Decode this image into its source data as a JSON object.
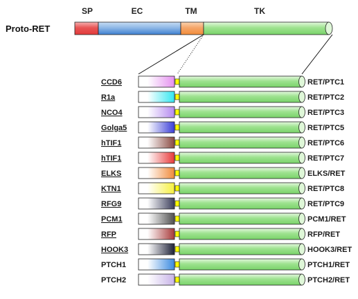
{
  "title": "Proto-RET",
  "domain_headers": [
    "SP",
    "EC",
    "TM",
    "TK"
  ],
  "colors": {
    "sp_red": "#e23a3a",
    "ec_blue": "#3d7fd0",
    "tm_orange": "#f28c3a",
    "tk_green": "#79d36a",
    "linker_yellow": "#ffff00"
  },
  "fusions": [
    {
      "partner": "CCD6",
      "name": "RET/PTC1",
      "color": "#e590f0",
      "underline": true
    },
    {
      "partner": "R1a",
      "name": "RET/PTC2",
      "color": "#33e6f0",
      "underline": true
    },
    {
      "partner": "NCO4",
      "name": "RET/PTC3",
      "color": "#b58af0",
      "underline": true
    },
    {
      "partner": "Golga5",
      "name": "RET/PTC5",
      "color": "#3b3fd8",
      "underline": true
    },
    {
      "partner": "hTIF1",
      "name": "RET/PTC6",
      "color": "#8a4a42",
      "underline": true
    },
    {
      "partner": "hTIF1",
      "name": "RET/PTC7",
      "color": "#e83a3a",
      "underline": true
    },
    {
      "partner": "ELKS",
      "name": "ELKS/RET",
      "color": "#f08a3a",
      "underline": true
    },
    {
      "partner": "KTN1",
      "name": "RET/PTC8",
      "color": "#f6f040",
      "underline": true
    },
    {
      "partner": "RFG9",
      "name": "RET/PTC9",
      "color": "#3a3d5a",
      "underline": true
    },
    {
      "partner": "PCM1",
      "name": "PCM1/RET",
      "color": "#505050",
      "underline": true
    },
    {
      "partner": "RFP",
      "name": "RFP/RET",
      "color": "#a83a3a",
      "underline": true
    },
    {
      "partner": "HOOK3",
      "name": "HOOK3/RET",
      "color": "#1e2238",
      "underline": true
    },
    {
      "partner": "PTCH1",
      "name": "PTCH1/RET",
      "color": "#3a8ae0",
      "underline": false
    },
    {
      "partner": "PTCH2",
      "name": "PTCH2/RET",
      "color": "#c8b4e8",
      "underline": false
    }
  ]
}
